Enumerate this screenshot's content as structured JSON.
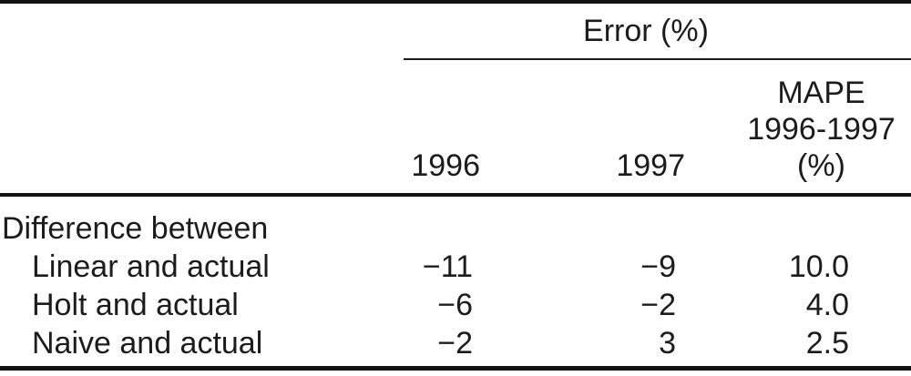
{
  "page": {
    "background_color": "#ffffff",
    "text_color": "#1c1c1c",
    "rule_color": "#131313"
  },
  "table": {
    "spanner_label": "Error (%)",
    "column_headers": {
      "col_1996": "1996",
      "col_1997": "1997",
      "col_mape_line1": "MAPE",
      "col_mape_line2": "1996-1997",
      "col_mape_line3": "(%)"
    },
    "rows": [
      {
        "label": "Difference between",
        "v1996": "",
        "v1997": "",
        "mape": ""
      },
      {
        "label": "Linear and actual",
        "v1996": "−11",
        "v1997": "−9",
        "mape": "10.0"
      },
      {
        "label": "Holt and actual",
        "v1996": "−6",
        "v1997": "−2",
        "mape": "4.0"
      },
      {
        "label": "Naive and actual",
        "v1996": "−2",
        "v1997": "3",
        "mape": "2.5"
      }
    ]
  },
  "chart_data": {
    "type": "table",
    "title": "Error (%)",
    "columns": [
      "",
      "1996",
      "1997",
      "MAPE 1996-1997 (%)"
    ],
    "rows": [
      [
        "Difference between",
        null,
        null,
        null
      ],
      [
        "Linear and actual",
        -11,
        -9,
        10.0
      ],
      [
        "Holt and actual",
        -6,
        -2,
        4.0
      ],
      [
        "Naive and actual",
        -2,
        3,
        2.5
      ]
    ]
  }
}
